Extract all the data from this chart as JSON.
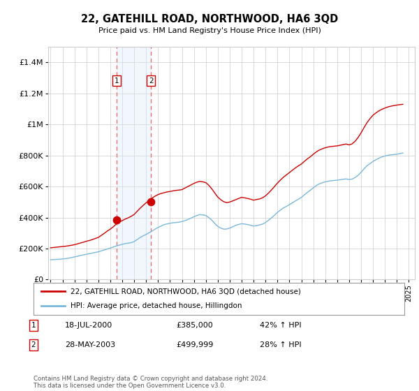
{
  "title": "22, GATEHILL ROAD, NORTHWOOD, HA6 3QD",
  "subtitle": "Price paid vs. HM Land Registry's House Price Index (HPI)",
  "legend_line1": "22, GATEHILL ROAD, NORTHWOOD, HA6 3QD (detached house)",
  "legend_line2": "HPI: Average price, detached house, Hillingdon",
  "sale1_label": "1",
  "sale1_date": "18-JUL-2000",
  "sale1_price": "£385,000",
  "sale1_hpi": "42% ↑ HPI",
  "sale1_year": 2000.54,
  "sale1_value": 385000,
  "sale2_label": "2",
  "sale2_date": "28-MAY-2003",
  "sale2_price": "£499,999",
  "sale2_hpi": "28% ↑ HPI",
  "sale2_year": 2003.4,
  "sale2_value": 499999,
  "hpi_color": "#7ab8d9",
  "price_color": "#cc0000",
  "dot_color": "#cc0000",
  "vline_color": "#e87070",
  "shade_color": "#d8eaf7",
  "grid_color": "#cccccc",
  "background_color": "#ffffff",
  "ylim": [
    0,
    1500000
  ],
  "xlim_start": 1994.8,
  "xlim_end": 2025.5,
  "footer": "Contains HM Land Registry data © Crown copyright and database right 2024.\nThis data is licensed under the Open Government Licence v3.0.",
  "hpi_years": [
    1995.0,
    1995.25,
    1995.5,
    1995.75,
    1996.0,
    1996.25,
    1996.5,
    1996.75,
    1997.0,
    1997.25,
    1997.5,
    1997.75,
    1998.0,
    1998.25,
    1998.5,
    1998.75,
    1999.0,
    1999.25,
    1999.5,
    1999.75,
    2000.0,
    2000.25,
    2000.5,
    2000.75,
    2001.0,
    2001.25,
    2001.5,
    2001.75,
    2002.0,
    2002.25,
    2002.5,
    2002.75,
    2003.0,
    2003.25,
    2003.5,
    2003.75,
    2004.0,
    2004.25,
    2004.5,
    2004.75,
    2005.0,
    2005.25,
    2005.5,
    2005.75,
    2006.0,
    2006.25,
    2006.5,
    2006.75,
    2007.0,
    2007.25,
    2007.5,
    2007.75,
    2008.0,
    2008.25,
    2008.5,
    2008.75,
    2009.0,
    2009.25,
    2009.5,
    2009.75,
    2010.0,
    2010.25,
    2010.5,
    2010.75,
    2011.0,
    2011.25,
    2011.5,
    2011.75,
    2012.0,
    2012.25,
    2012.5,
    2012.75,
    2013.0,
    2013.25,
    2013.5,
    2013.75,
    2014.0,
    2014.25,
    2014.5,
    2014.75,
    2015.0,
    2015.25,
    2015.5,
    2015.75,
    2016.0,
    2016.25,
    2016.5,
    2016.75,
    2017.0,
    2017.25,
    2017.5,
    2017.75,
    2018.0,
    2018.25,
    2018.5,
    2018.75,
    2019.0,
    2019.25,
    2019.5,
    2019.75,
    2020.0,
    2020.25,
    2020.5,
    2020.75,
    2021.0,
    2021.25,
    2021.5,
    2021.75,
    2022.0,
    2022.25,
    2022.5,
    2022.75,
    2023.0,
    2023.25,
    2023.5,
    2023.75,
    2024.0,
    2024.25,
    2024.5
  ],
  "hpi_values": [
    128000,
    129000,
    130000,
    131000,
    133000,
    135000,
    138000,
    142000,
    146000,
    150000,
    155000,
    159000,
    163000,
    167000,
    171000,
    175000,
    179000,
    185000,
    191000,
    197000,
    203000,
    210000,
    217000,
    222000,
    227000,
    232000,
    235000,
    238000,
    245000,
    258000,
    271000,
    282000,
    291000,
    302000,
    313000,
    325000,
    336000,
    345000,
    354000,
    359000,
    363000,
    366000,
    368000,
    370000,
    374000,
    380000,
    387000,
    396000,
    405000,
    413000,
    419000,
    417000,
    413000,
    400000,
    383000,
    362000,
    343000,
    332000,
    325000,
    326000,
    332000,
    340000,
    350000,
    356000,
    360000,
    358000,
    355000,
    350000,
    345000,
    348000,
    352000,
    358000,
    368000,
    382000,
    398000,
    415000,
    433000,
    448000,
    462000,
    472000,
    483000,
    495000,
    507000,
    518000,
    530000,
    546000,
    562000,
    576000,
    592000,
    606000,
    617000,
    624000,
    630000,
    634000,
    637000,
    639000,
    641000,
    644000,
    647000,
    649000,
    645000,
    648000,
    658000,
    672000,
    692000,
    714000,
    734000,
    748000,
    762000,
    773000,
    783000,
    791000,
    797000,
    801000,
    804000,
    806000,
    808000,
    812000,
    816000
  ],
  "price_years": [
    1995.0,
    1995.25,
    1995.5,
    1995.75,
    1996.0,
    1996.25,
    1996.5,
    1996.75,
    1997.0,
    1997.25,
    1997.5,
    1997.75,
    1998.0,
    1998.25,
    1998.5,
    1998.75,
    1999.0,
    1999.25,
    1999.5,
    1999.75,
    2000.0,
    2000.25,
    2000.5,
    2000.75,
    2001.0,
    2001.25,
    2001.5,
    2001.75,
    2002.0,
    2002.25,
    2002.5,
    2002.75,
    2003.0,
    2003.25,
    2003.5,
    2003.75,
    2004.0,
    2004.25,
    2004.5,
    2004.75,
    2005.0,
    2005.25,
    2005.5,
    2005.75,
    2006.0,
    2006.25,
    2006.5,
    2006.75,
    2007.0,
    2007.25,
    2007.5,
    2007.75,
    2008.0,
    2008.25,
    2008.5,
    2008.75,
    2009.0,
    2009.25,
    2009.5,
    2009.75,
    2010.0,
    2010.25,
    2010.5,
    2010.75,
    2011.0,
    2011.25,
    2011.5,
    2011.75,
    2012.0,
    2012.25,
    2012.5,
    2012.75,
    2013.0,
    2013.25,
    2013.5,
    2013.75,
    2014.0,
    2014.25,
    2014.5,
    2014.75,
    2015.0,
    2015.25,
    2015.5,
    2015.75,
    2016.0,
    2016.25,
    2016.5,
    2016.75,
    2017.0,
    2017.25,
    2017.5,
    2017.75,
    2018.0,
    2018.25,
    2018.5,
    2018.75,
    2019.0,
    2019.25,
    2019.5,
    2019.75,
    2020.0,
    2020.25,
    2020.5,
    2020.75,
    2021.0,
    2021.25,
    2021.5,
    2021.75,
    2022.0,
    2022.25,
    2022.5,
    2022.75,
    2023.0,
    2023.25,
    2023.5,
    2023.75,
    2024.0,
    2024.25,
    2024.5
  ],
  "price_values": [
    205000,
    207000,
    209000,
    211000,
    213000,
    215000,
    218000,
    221000,
    225000,
    230000,
    236000,
    241000,
    247000,
    252000,
    258000,
    265000,
    272000,
    285000,
    298000,
    313000,
    325000,
    340000,
    358000,
    370000,
    380000,
    390000,
    398000,
    408000,
    420000,
    440000,
    460000,
    478000,
    495000,
    510000,
    525000,
    538000,
    548000,
    555000,
    560000,
    565000,
    568000,
    572000,
    575000,
    577000,
    580000,
    590000,
    600000,
    610000,
    620000,
    628000,
    633000,
    630000,
    625000,
    608000,
    585000,
    558000,
    532000,
    515000,
    502000,
    496000,
    500000,
    507000,
    515000,
    523000,
    530000,
    527000,
    523000,
    518000,
    512000,
    516000,
    520000,
    527000,
    540000,
    558000,
    578000,
    600000,
    622000,
    642000,
    660000,
    675000,
    690000,
    705000,
    720000,
    733000,
    745000,
    762000,
    778000,
    792000,
    808000,
    823000,
    835000,
    843000,
    850000,
    855000,
    858000,
    860000,
    862000,
    866000,
    870000,
    874000,
    868000,
    875000,
    892000,
    916000,
    946000,
    980000,
    1012000,
    1038000,
    1060000,
    1075000,
    1088000,
    1098000,
    1106000,
    1113000,
    1118000,
    1122000,
    1125000,
    1128000,
    1130000
  ],
  "xticks": [
    1995,
    1996,
    1997,
    1998,
    1999,
    2000,
    2001,
    2002,
    2003,
    2004,
    2005,
    2006,
    2007,
    2008,
    2009,
    2010,
    2011,
    2012,
    2013,
    2014,
    2015,
    2016,
    2017,
    2018,
    2019,
    2020,
    2021,
    2022,
    2023,
    2024,
    2025
  ]
}
